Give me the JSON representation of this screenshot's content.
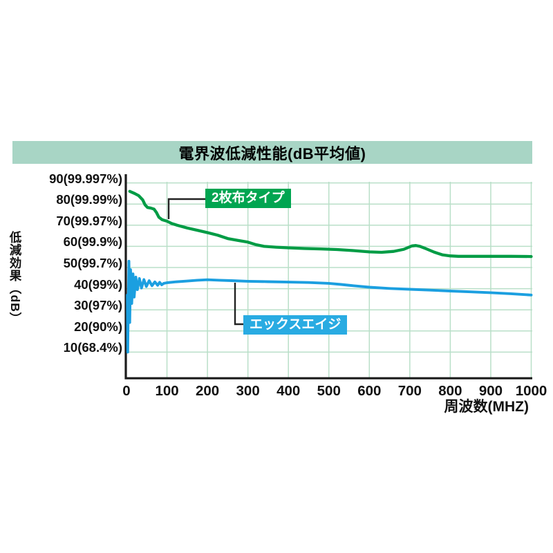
{
  "chart_data": {
    "type": "line",
    "title": "電界波低減性能(dB平均値)",
    "xlabel": "周波数(MHZ)",
    "ylabel": "低減効果（dB）",
    "xlim": [
      0,
      1003
    ],
    "ylim": [
      0,
      94
    ],
    "grid": true,
    "legend_position": "callout-labels-on-plot",
    "x_ticks": [
      0,
      100,
      200,
      300,
      400,
      500,
      600,
      700,
      800,
      900,
      1000
    ],
    "y_ticks": [
      90,
      80,
      70,
      60,
      50,
      40,
      30,
      20,
      10
    ],
    "y_tick_labels": [
      "90(99.997%)",
      "80(99.99%)",
      "70(99.97%)",
      "60(99.9%)",
      "50(99.7%)",
      "40(99%)",
      "30(97%)",
      "20(90%)",
      "10(68.4%)"
    ],
    "colors": {
      "title_banner_bg": "#a8d5c5",
      "grid": "#b9dfc8",
      "axis": "#1c1c1c",
      "connector": "#222222",
      "text": "#111111"
    },
    "series": [
      {
        "name": "2枚布タイプ",
        "color": "#009c45",
        "label_bg": "#00a551",
        "label_text_color": "#ffffff",
        "values": [
          [
            8,
            86
          ],
          [
            20,
            85
          ],
          [
            30,
            84
          ],
          [
            40,
            82
          ],
          [
            46,
            79.6
          ],
          [
            52,
            78.4
          ],
          [
            60,
            78.1
          ],
          [
            68,
            77.6
          ],
          [
            74,
            76
          ],
          [
            80,
            73.8
          ],
          [
            88,
            72.6
          ],
          [
            100,
            71.9
          ],
          [
            112,
            70.8
          ],
          [
            125,
            70
          ],
          [
            150,
            68.7
          ],
          [
            175,
            67.6
          ],
          [
            200,
            66.5
          ],
          [
            225,
            65.3
          ],
          [
            250,
            63.7
          ],
          [
            275,
            62.8
          ],
          [
            300,
            62
          ],
          [
            320,
            60.8
          ],
          [
            340,
            60
          ],
          [
            370,
            59.6
          ],
          [
            400,
            59.3
          ],
          [
            440,
            59
          ],
          [
            480,
            58.8
          ],
          [
            520,
            58.5
          ],
          [
            560,
            58
          ],
          [
            600,
            57.4
          ],
          [
            630,
            57.2
          ],
          [
            660,
            57.6
          ],
          [
            685,
            58.6
          ],
          [
            705,
            60.2
          ],
          [
            715,
            60.4
          ],
          [
            725,
            60
          ],
          [
            740,
            58.9
          ],
          [
            760,
            57.3
          ],
          [
            780,
            56
          ],
          [
            800,
            55.5
          ],
          [
            820,
            55.3
          ],
          [
            860,
            55.3
          ],
          [
            900,
            55.3
          ],
          [
            950,
            55.3
          ],
          [
            1000,
            55.2
          ]
        ]
      },
      {
        "name": "エックスエイジ",
        "color": "#1b9fe0",
        "label_bg": "#29abe2",
        "label_text_color": "#ffffff",
        "values": [
          [
            2,
            37
          ],
          [
            3,
            10
          ],
          [
            4,
            26
          ],
          [
            6,
            53
          ],
          [
            8,
            24
          ],
          [
            10,
            49
          ],
          [
            13,
            33
          ],
          [
            16,
            47
          ],
          [
            19,
            36
          ],
          [
            23,
            45.5
          ],
          [
            27,
            39.5
          ],
          [
            32,
            44.8
          ],
          [
            37,
            40.3
          ],
          [
            43,
            44.3
          ],
          [
            49,
            41
          ],
          [
            56,
            43.8
          ],
          [
            63,
            41.4
          ],
          [
            70,
            43.2
          ],
          [
            77,
            41.6
          ],
          [
            82,
            43
          ],
          [
            87,
            41.8
          ],
          [
            92,
            42.5
          ],
          [
            100,
            42.8
          ],
          [
            120,
            43.2
          ],
          [
            150,
            43.6
          ],
          [
            175,
            44
          ],
          [
            200,
            44.2
          ],
          [
            230,
            44
          ],
          [
            260,
            43.8
          ],
          [
            300,
            43.5
          ],
          [
            350,
            43.3
          ],
          [
            400,
            43.1
          ],
          [
            450,
            42.9
          ],
          [
            500,
            42.5
          ],
          [
            530,
            42
          ],
          [
            560,
            41.4
          ],
          [
            600,
            40.7
          ],
          [
            650,
            40.1
          ],
          [
            700,
            39.7
          ],
          [
            750,
            39.3
          ],
          [
            800,
            38.9
          ],
          [
            850,
            38.5
          ],
          [
            900,
            38.1
          ],
          [
            950,
            37.6
          ],
          [
            1000,
            37
          ]
        ]
      }
    ]
  }
}
